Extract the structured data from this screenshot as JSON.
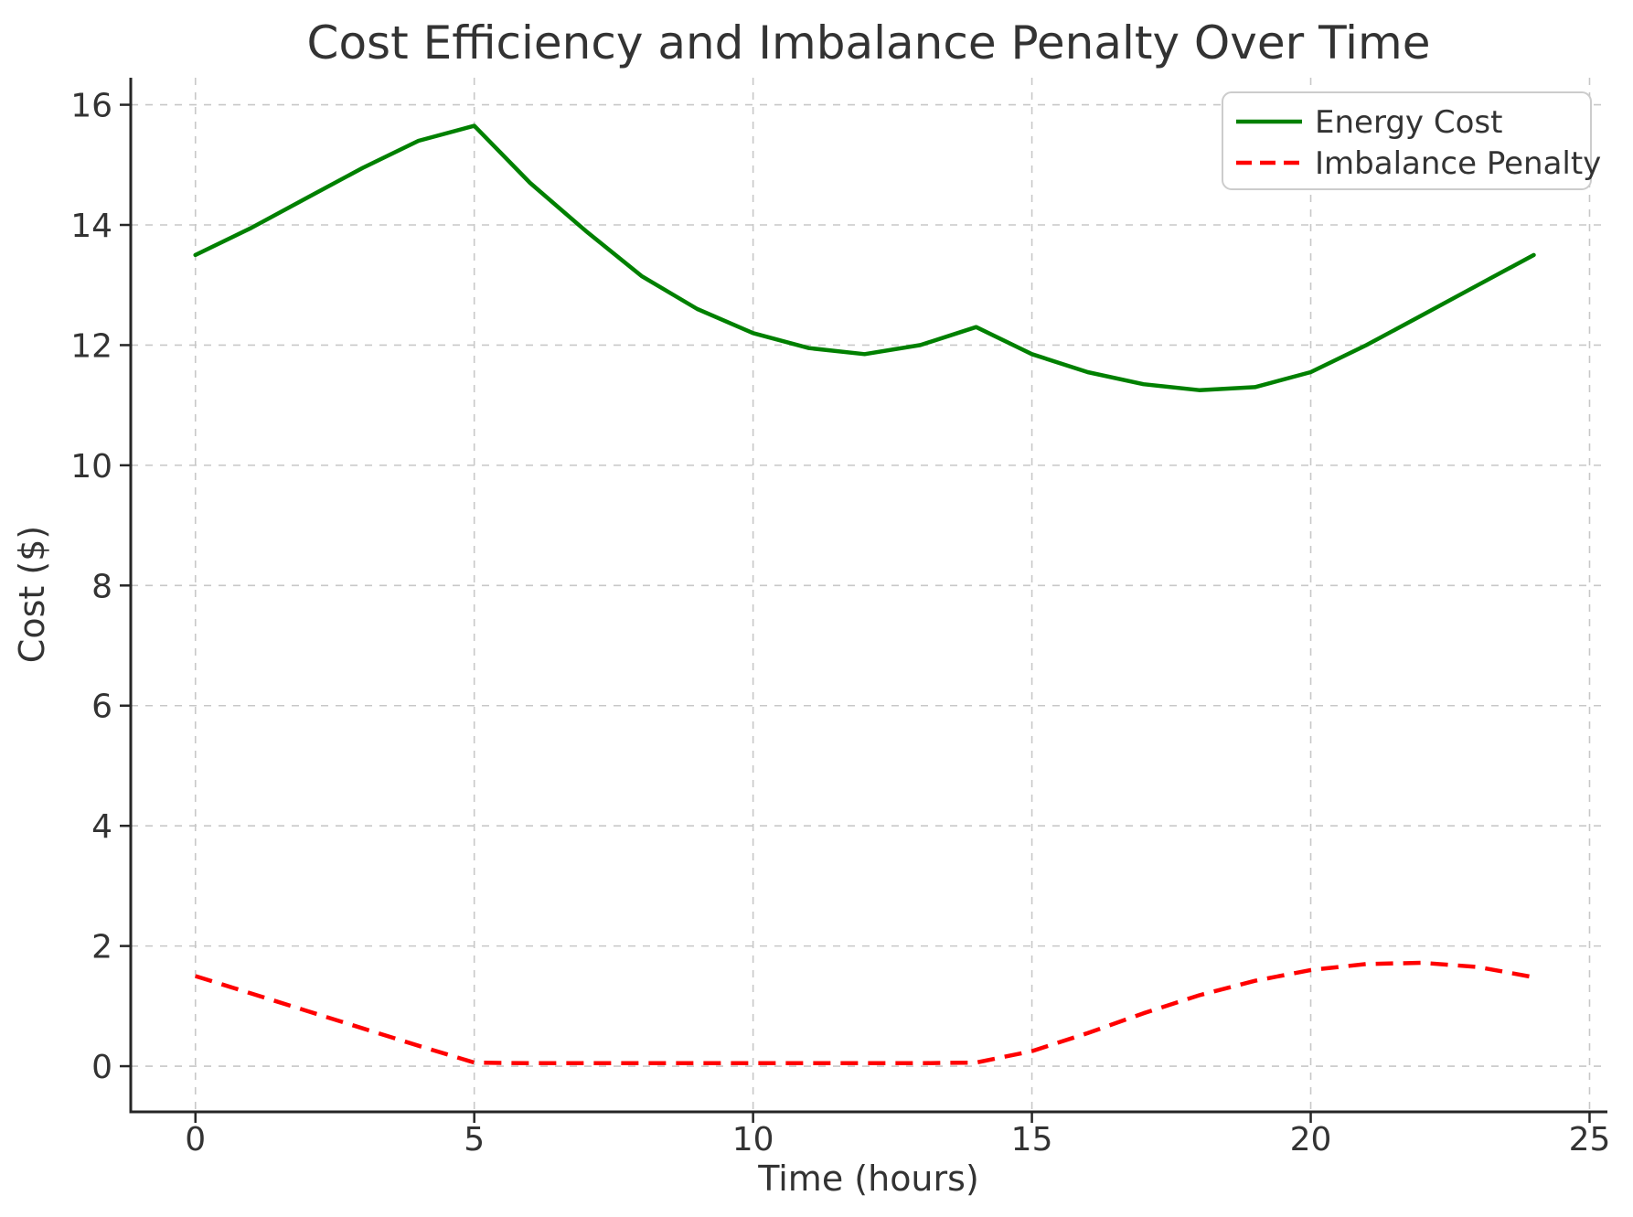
{
  "chart_data": {
    "type": "line",
    "title": "Cost Efficiency and Imbalance Penalty Over Time",
    "xlabel": "Time (hours)",
    "ylabel": "Cost ($)",
    "x_ticks": [
      0,
      5,
      10,
      15,
      20,
      25
    ],
    "y_ticks": [
      0,
      2,
      4,
      6,
      8,
      10,
      12,
      14,
      16
    ],
    "xlim": [
      -1.16,
      25.32
    ],
    "ylim": [
      -0.76,
      16.45
    ],
    "grid": true,
    "legend_position": "upper right",
    "x": [
      0,
      1,
      2,
      3,
      4,
      5,
      6,
      7,
      8,
      9,
      10,
      11,
      12,
      13,
      14,
      15,
      16,
      17,
      18,
      19,
      20,
      21,
      22,
      23,
      24
    ],
    "series": [
      {
        "name": "Energy Cost",
        "color": "#008000",
        "style": "solid",
        "values": [
          13.5,
          13.95,
          14.45,
          14.95,
          15.4,
          15.65,
          14.7,
          13.9,
          13.15,
          12.6,
          12.2,
          11.95,
          11.85,
          12.0,
          12.3,
          11.85,
          11.55,
          11.35,
          11.25,
          11.3,
          11.55,
          12.0,
          12.5,
          13.0,
          13.5
        ]
      },
      {
        "name": "Imbalance Penalty",
        "color": "#ff0000",
        "style": "dashed",
        "values": [
          1.5,
          1.21,
          0.92,
          0.63,
          0.34,
          0.06,
          0.05,
          0.05,
          0.05,
          0.05,
          0.05,
          0.05,
          0.05,
          0.05,
          0.06,
          0.25,
          0.55,
          0.88,
          1.18,
          1.42,
          1.6,
          1.7,
          1.72,
          1.65,
          1.48
        ]
      }
    ],
    "colors": {
      "grid": "#c8c8c8",
      "axis": "#262626",
      "text": "#333333",
      "legend_border": "#cccccc",
      "background": "#ffffff"
    }
  }
}
